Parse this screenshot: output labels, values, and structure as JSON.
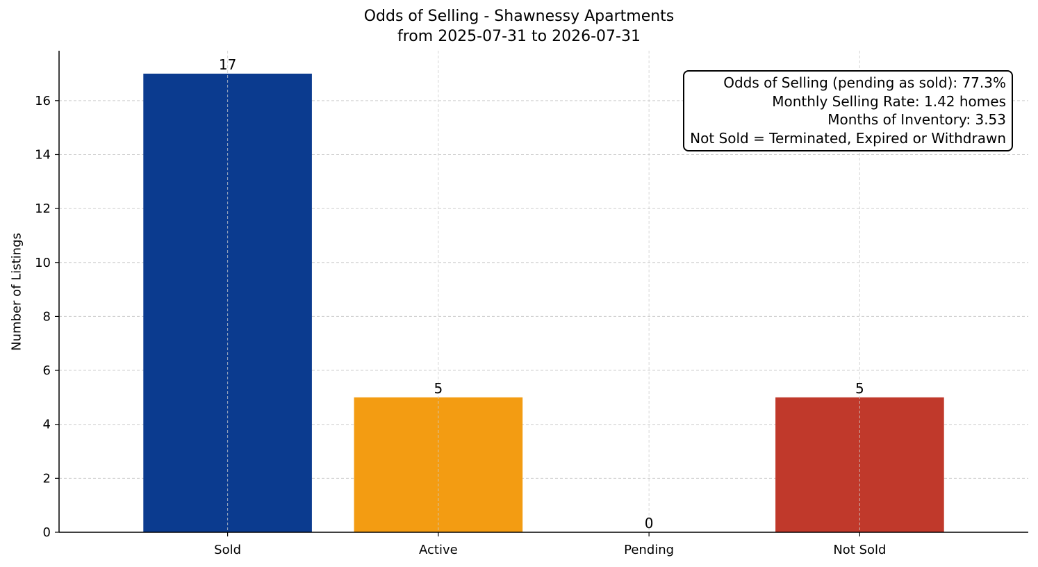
{
  "chart_data": {
    "type": "bar",
    "title": "Odds of Selling - Shawnessy Apartments",
    "subtitle": "from 2025-07-31 to 2026-07-31",
    "xlabel": "",
    "ylabel": "Number of Listings",
    "categories": [
      "Sold",
      "Active",
      "Pending",
      "Not Sold"
    ],
    "values": [
      17,
      5,
      0,
      5
    ],
    "colors": [
      "#0b3b8f",
      "#f39c12",
      "#7f7f7f",
      "#c0392b"
    ],
    "ylim": [
      0,
      17.85
    ],
    "yticks": [
      0,
      2,
      4,
      6,
      8,
      10,
      12,
      14,
      16
    ],
    "grid": true,
    "annotation_lines": [
      "Odds of Selling (pending as sold): 77.3%",
      "Monthly Selling Rate: 1.42 homes",
      "Months of Inventory: 3.53",
      "Not Sold = Terminated, Expired or Withdrawn"
    ],
    "annotation_placement": "top-right"
  }
}
